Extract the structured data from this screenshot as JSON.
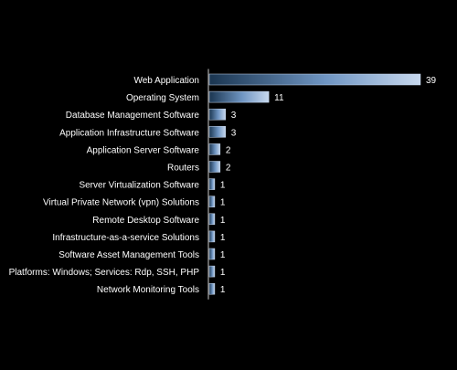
{
  "colors": {
    "background": "#000000",
    "label_text": "#ffffff",
    "axis_line": "#c8c8c8",
    "bar_dark": "#1a3550",
    "bar_mid": "#6f95c2",
    "bar_light": "#c7d8ee"
  },
  "chart_data": {
    "type": "bar",
    "orientation": "horizontal",
    "title": "",
    "xlabel": "",
    "ylabel": "",
    "grid": false,
    "xlim": [
      0,
      39
    ],
    "categories": [
      "Web Application",
      "Operating System",
      "Database Management Software",
      "Application Infrastructure Software",
      "Application Server Software",
      "Routers",
      "Server Virtualization Software",
      "Virtual Private Network (vpn) Solutions",
      "Remote Desktop Software",
      "Infrastructure-as-a-service Solutions",
      "Software Asset Management Tools",
      "Platforms: Windows; Services: Rdp, SSH, PHP",
      "Network Monitoring Tools"
    ],
    "values": [
      39,
      11,
      3,
      3,
      2,
      2,
      1,
      1,
      1,
      1,
      1,
      1,
      1
    ],
    "data_labels": [
      "39",
      "11",
      "3",
      "3",
      "2",
      "2",
      "1",
      "1",
      "1",
      "1",
      "1",
      "1",
      "1"
    ]
  }
}
